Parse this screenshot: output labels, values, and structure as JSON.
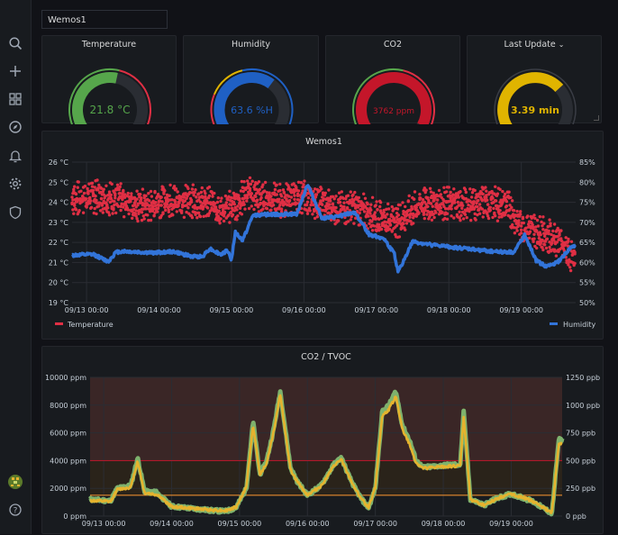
{
  "dashboard": {
    "title": "Wemos1"
  },
  "sidebar": {
    "items": [
      {
        "name": "search-icon"
      },
      {
        "name": "plus-icon"
      },
      {
        "name": "dashboards-icon"
      },
      {
        "name": "explore-icon"
      },
      {
        "name": "alerting-icon"
      },
      {
        "name": "configuration-icon"
      },
      {
        "name": "shield-icon"
      },
      {
        "name": "help-icon"
      }
    ]
  },
  "gauges": {
    "temperature": {
      "title": "Temperature",
      "display": "21.8 °C",
      "value": 21.8,
      "min": 0,
      "max": 40,
      "color": "#56a64b"
    },
    "humidity": {
      "title": "Humidity",
      "display": "63.6 %H",
      "value": 63.6,
      "min": 0,
      "max": 100,
      "color": "#1f60c4"
    },
    "co2": {
      "title": "CO2",
      "display": "3762 ppm",
      "value": 3762,
      "min": 0,
      "max": 4000,
      "color": "#c4162a"
    },
    "last_update": {
      "title": "Last Update",
      "display": "3.39 min",
      "value": 3.39,
      "min": 0,
      "max": 5,
      "color": "#e0b400"
    }
  },
  "colors": {
    "temperature": "#e02f44",
    "humidity": "#3274d9",
    "co2": "#e5b32e",
    "tvoc": "#7eb26d",
    "threshold_red": "#c4162a",
    "threshold_orange": "#ff9830"
  },
  "chart_data": [
    {
      "type": "scatter",
      "title": "Wemos1",
      "x_tick_labels": [
        "09/13 00:00",
        "09/14 00:00",
        "09/15 00:00",
        "09/16 00:00",
        "09/17 00:00",
        "09/18 00:00",
        "09/19 00:00"
      ],
      "y_left_labels": [
        "19 °C",
        "20 °C",
        "21 °C",
        "22 °C",
        "23 °C",
        "24 °C",
        "25 °C",
        "26 °C"
      ],
      "y_right_labels": [
        "50%",
        "55%",
        "60%",
        "65%",
        "70%",
        "75%",
        "80%",
        "85%"
      ],
      "ylim_left": [
        19,
        26
      ],
      "ylim_right": [
        50,
        85
      ],
      "xlim_days": [
        -0.2,
        6.75
      ],
      "legend": [
        "Temperature",
        "Humidity"
      ],
      "series": [
        {
          "name": "Temperature",
          "axis": "left",
          "unit": "°C",
          "x": [
            -0.2,
            0.1,
            0.4,
            0.7,
            0.9,
            1.0,
            1.2,
            1.5,
            1.75,
            1.9,
            2.05,
            2.2,
            2.35,
            2.5,
            2.7,
            2.95,
            3.2,
            3.5,
            3.7,
            3.9,
            4.1,
            4.3,
            4.6,
            4.9,
            5.2,
            5.5,
            5.8,
            6.0,
            6.2,
            6.4,
            6.55,
            6.7
          ],
          "y": [
            24.0,
            24.1,
            24.0,
            23.7,
            23.6,
            23.9,
            23.9,
            23.9,
            23.7,
            23.4,
            23.7,
            24.3,
            24.1,
            24.0,
            23.9,
            24.1,
            23.8,
            23.5,
            23.6,
            23.3,
            23.0,
            22.9,
            23.7,
            23.8,
            23.7,
            23.8,
            23.7,
            22.6,
            22.4,
            22.1,
            21.9,
            21.0
          ]
        },
        {
          "name": "Humidity",
          "axis": "right",
          "unit": "%",
          "x": [
            -0.2,
            0.1,
            0.3,
            0.4,
            0.5,
            0.9,
            1.2,
            1.45,
            1.6,
            1.7,
            1.85,
            1.95,
            2.0,
            2.05,
            2.15,
            2.3,
            2.6,
            2.9,
            3.05,
            3.25,
            3.4,
            3.55,
            3.7,
            3.9,
            4.1,
            4.25,
            4.3,
            4.5,
            4.7,
            5.2,
            5.6,
            5.9,
            6.05,
            6.2,
            6.35,
            6.5,
            6.7
          ],
          "y": [
            61.8,
            62.0,
            60.2,
            62.5,
            62.8,
            62.4,
            62.7,
            61.5,
            61.5,
            63.5,
            62.0,
            63.0,
            60.5,
            67.5,
            65.5,
            71.8,
            72.0,
            72.0,
            79.5,
            71.0,
            71.2,
            71.8,
            72.5,
            67.0,
            66.0,
            62.0,
            57.5,
            65.2,
            64.5,
            63.5,
            62.8,
            62.5,
            67.0,
            60.5,
            59.0,
            60.0,
            64.0
          ]
        }
      ]
    },
    {
      "type": "line",
      "title": "CO2 / TVOC",
      "x_tick_labels": [
        "09/13 00:00",
        "09/14 00:00",
        "09/15 00:00",
        "09/16 00:00",
        "09/17 00:00",
        "09/18 00:00",
        "09/19 00:00"
      ],
      "y_left_labels": [
        "0 ppm",
        "2000 ppm",
        "4000 ppm",
        "6000 ppm",
        "8000 ppm",
        "10000 ppm"
      ],
      "y_right_labels": [
        "0 ppb",
        "250 ppb",
        "500 ppb",
        "750 ppb",
        "1000 ppb",
        "1250 ppb"
      ],
      "ylim_left": [
        0,
        10000
      ],
      "ylim_right": [
        0,
        1250
      ],
      "xlim_days": [
        -0.2,
        6.75
      ],
      "thresholds": [
        {
          "value": 1500,
          "color": "#ff9830"
        },
        {
          "value": 4000,
          "color": "#c4162a"
        }
      ],
      "series": [
        {
          "name": "CO2",
          "axis": "left",
          "unit": "ppm",
          "x": [
            -0.2,
            0.1,
            0.2,
            0.4,
            0.5,
            0.6,
            0.7,
            0.75,
            0.8,
            1.0,
            1.2,
            1.4,
            1.6,
            1.8,
            1.95,
            2.1,
            2.2,
            2.3,
            2.4,
            2.5,
            2.6,
            2.75,
            2.85,
            3.0,
            3.2,
            3.4,
            3.5,
            3.6,
            3.7,
            3.8,
            3.9,
            4.0,
            4.1,
            4.2,
            4.3,
            4.4,
            4.5,
            4.6,
            4.7,
            4.9,
            5.1,
            5.25,
            5.3,
            5.4,
            5.6,
            5.8,
            6.0,
            6.3,
            6.5,
            6.6,
            6.7
          ],
          "y": [
            1200,
            1100,
            2000,
            2200,
            4200,
            1800,
            1700,
            1800,
            1600,
            700,
            600,
            500,
            400,
            350,
            600,
            2000,
            6800,
            3000,
            4000,
            6200,
            9000,
            3500,
            2500,
            1500,
            2200,
            3800,
            4200,
            3000,
            2000,
            1200,
            600,
            2000,
            7500,
            8000,
            9000,
            6500,
            5500,
            4000,
            3500,
            3600,
            3700,
            3700,
            7500,
            1200,
            800,
            1300,
            1600,
            1100,
            500,
            200,
            5500
          ]
        },
        {
          "name": "TVOC",
          "axis": "right",
          "unit": "ppb",
          "x": [
            -0.2,
            0.1,
            0.2,
            0.4,
            0.5,
            0.6,
            0.7,
            0.8,
            1.0,
            1.2,
            1.4,
            1.6,
            1.8,
            1.95,
            2.1,
            2.2,
            2.3,
            2.4,
            2.5,
            2.6,
            2.75,
            2.85,
            3.0,
            3.2,
            3.4,
            3.5,
            3.6,
            3.7,
            3.8,
            3.9,
            4.0,
            4.1,
            4.2,
            4.3,
            4.4,
            4.5,
            4.6,
            4.7,
            4.9,
            5.1,
            5.25,
            5.3,
            5.4,
            5.6,
            5.8,
            6.0,
            6.3,
            6.5,
            6.6,
            6.7
          ],
          "y": [
            140,
            130,
            240,
            260,
            500,
            210,
            200,
            190,
            85,
            75,
            65,
            55,
            50,
            80,
            260,
            820,
            370,
            480,
            750,
            1100,
            420,
            310,
            190,
            270,
            460,
            510,
            370,
            250,
            150,
            80,
            260,
            900,
            960,
            1080,
            780,
            650,
            480,
            430,
            440,
            450,
            450,
            900,
            150,
            100,
            160,
            200,
            140,
            65,
            30,
            650
          ]
        }
      ]
    }
  ]
}
